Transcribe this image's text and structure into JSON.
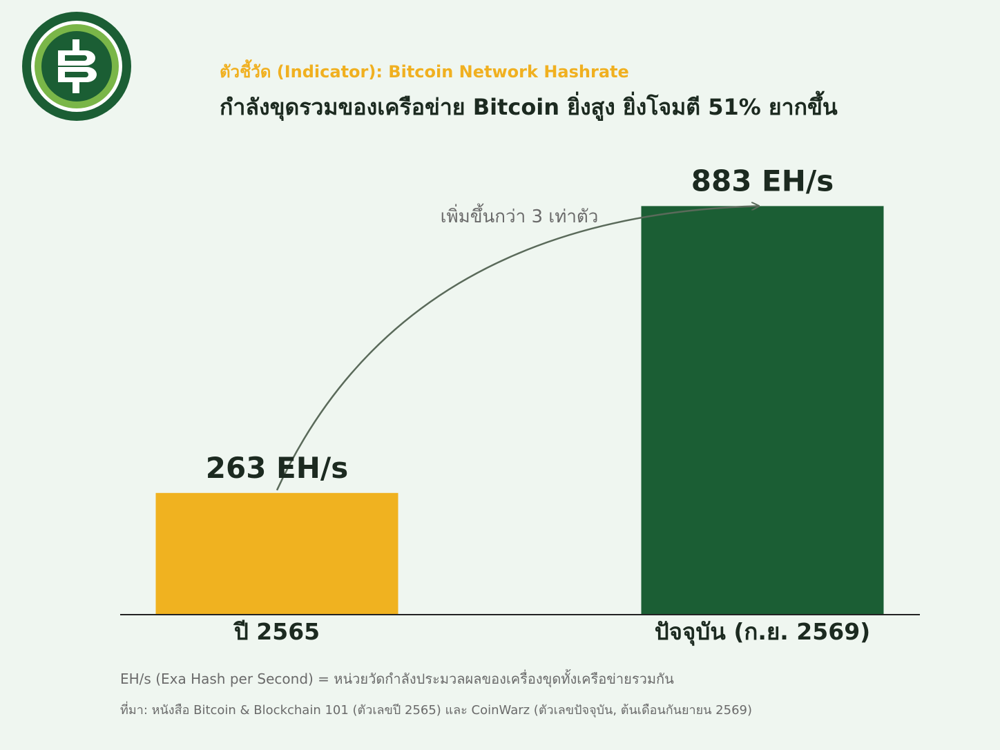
{
  "header": {
    "indicator": "ตัวชี้วัด (Indicator): Bitcoin Network Hashrate",
    "headline": "กำลังขุดรวมของเครือข่าย Bitcoin ยิ่งสูง ยิ่งโจมตี 51% ยากขึ้น"
  },
  "logo": {
    "icon": "bitcoin-logo-icon",
    "colors": {
      "outer": "#1b5e34",
      "ring": "#7ab648",
      "inner": "#1b5e34",
      "glyph": "#ffffff"
    }
  },
  "chart_data": {
    "type": "bar",
    "categories": [
      "ปี 2565",
      "ปัจจุบัน (ก.ย. 2569)"
    ],
    "values": [
      263,
      883
    ],
    "value_labels": [
      "263 EH/s",
      "883 EH/s"
    ],
    "colors": [
      "#f0b220",
      "#1b5e34"
    ],
    "ylim": [
      0,
      1000
    ],
    "annotation": "เพิ่มขึ้นกว่า 3 เท่าตัว",
    "grid": false
  },
  "footnotes": {
    "definition": "EH/s (Exa Hash per Second) = หน่วยวัดกำลังประมวลผลของเครื่องขุดทั้งเครือข่ายรวมกัน",
    "source": "ที่มา: หนังสือ Bitcoin & Blockchain 101 (ตัวเลขปี 2565) และ CoinWarz (ตัวเลขปัจจุบัน, ต้นเดือนกันยายน 2569)"
  }
}
